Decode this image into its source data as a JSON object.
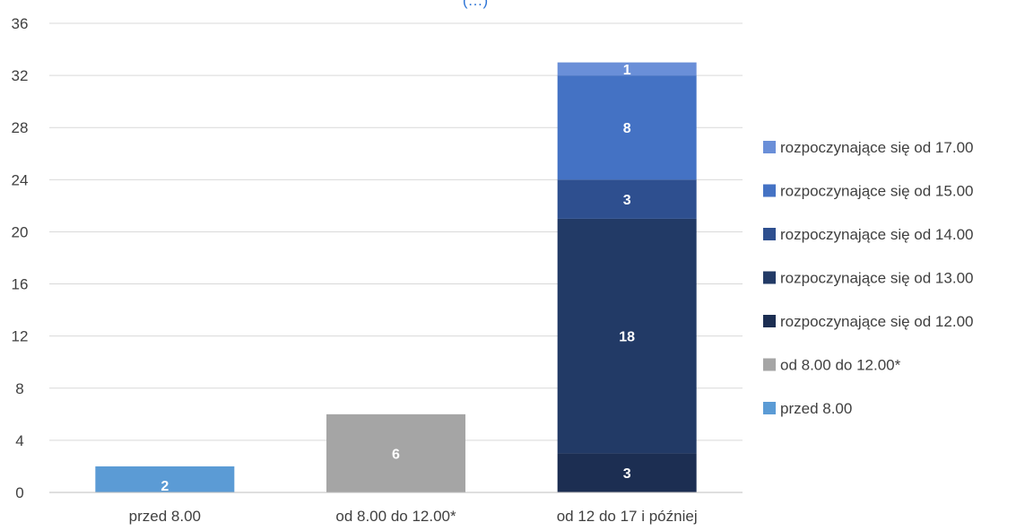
{
  "chart_data": {
    "type": "bar",
    "stacked": true,
    "title_fragment": "(…)",
    "categories": [
      "przed 8.00",
      "od 8.00 do 12.00*",
      "od 12 do 17 i później"
    ],
    "ylim": [
      0,
      36
    ],
    "yticks": [
      0,
      4,
      8,
      12,
      16,
      20,
      24,
      28,
      32,
      36
    ],
    "grid": true,
    "legend_position": "right",
    "series": [
      {
        "name": "przed 8.00",
        "color": "#5b9bd5",
        "values": [
          2,
          0,
          0
        ]
      },
      {
        "name": "od 8.00 do 12.00*",
        "color": "#a5a5a5",
        "values": [
          0,
          6,
          0
        ]
      },
      {
        "name": "rozpoczynające się od 12.00",
        "color": "#1c2e52",
        "values": [
          0,
          0,
          3
        ]
      },
      {
        "name": "rozpoczynające się od 13.00",
        "color": "#223a66",
        "values": [
          0,
          0,
          18
        ]
      },
      {
        "name": "rozpoczynające się od 14.00",
        "color": "#2e4f8f",
        "values": [
          0,
          0,
          3
        ]
      },
      {
        "name": "rozpoczynające się od 15.00",
        "color": "#4472c4",
        "values": [
          0,
          0,
          8
        ]
      },
      {
        "name": "rozpoczynające się od 17.00",
        "color": "#6a8fd8",
        "values": [
          0,
          0,
          1
        ]
      }
    ]
  }
}
